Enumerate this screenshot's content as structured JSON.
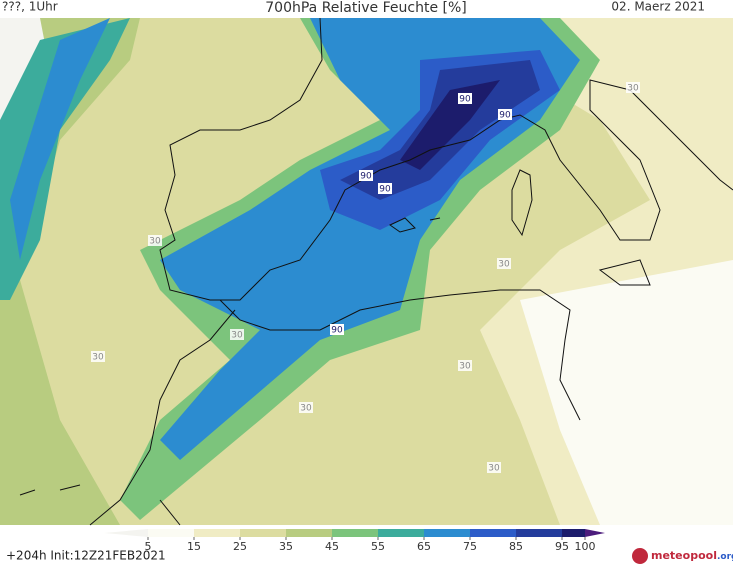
{
  "header": {
    "left": "???, 1Uhr",
    "title": "700hPa Relative Feuchte [%]",
    "date": "02. Maerz 2021"
  },
  "contour_labels": [
    "90",
    "90",
    "90",
    "90",
    "90",
    "30",
    "30",
    "30",
    "30",
    "30",
    "30",
    "30",
    "30"
  ],
  "colorbar": {
    "ticks": [
      5,
      15,
      25,
      35,
      45,
      55,
      65,
      75,
      85,
      95,
      100
    ],
    "colors": [
      "#f4f4f0",
      "#fbfbf3",
      "#f0ecc4",
      "#dcdca0",
      "#b8cc80",
      "#7cc47c",
      "#3cac9c",
      "#2c8cd0",
      "#2c5cc8",
      "#243c9c",
      "#1c1c6c",
      "#4c1c7c"
    ]
  },
  "footer": {
    "run": "+204h Init:12Z21FEB2021",
    "logo_a": "meteo",
    "logo_b": "pool",
    "logo_c": ".org"
  }
}
